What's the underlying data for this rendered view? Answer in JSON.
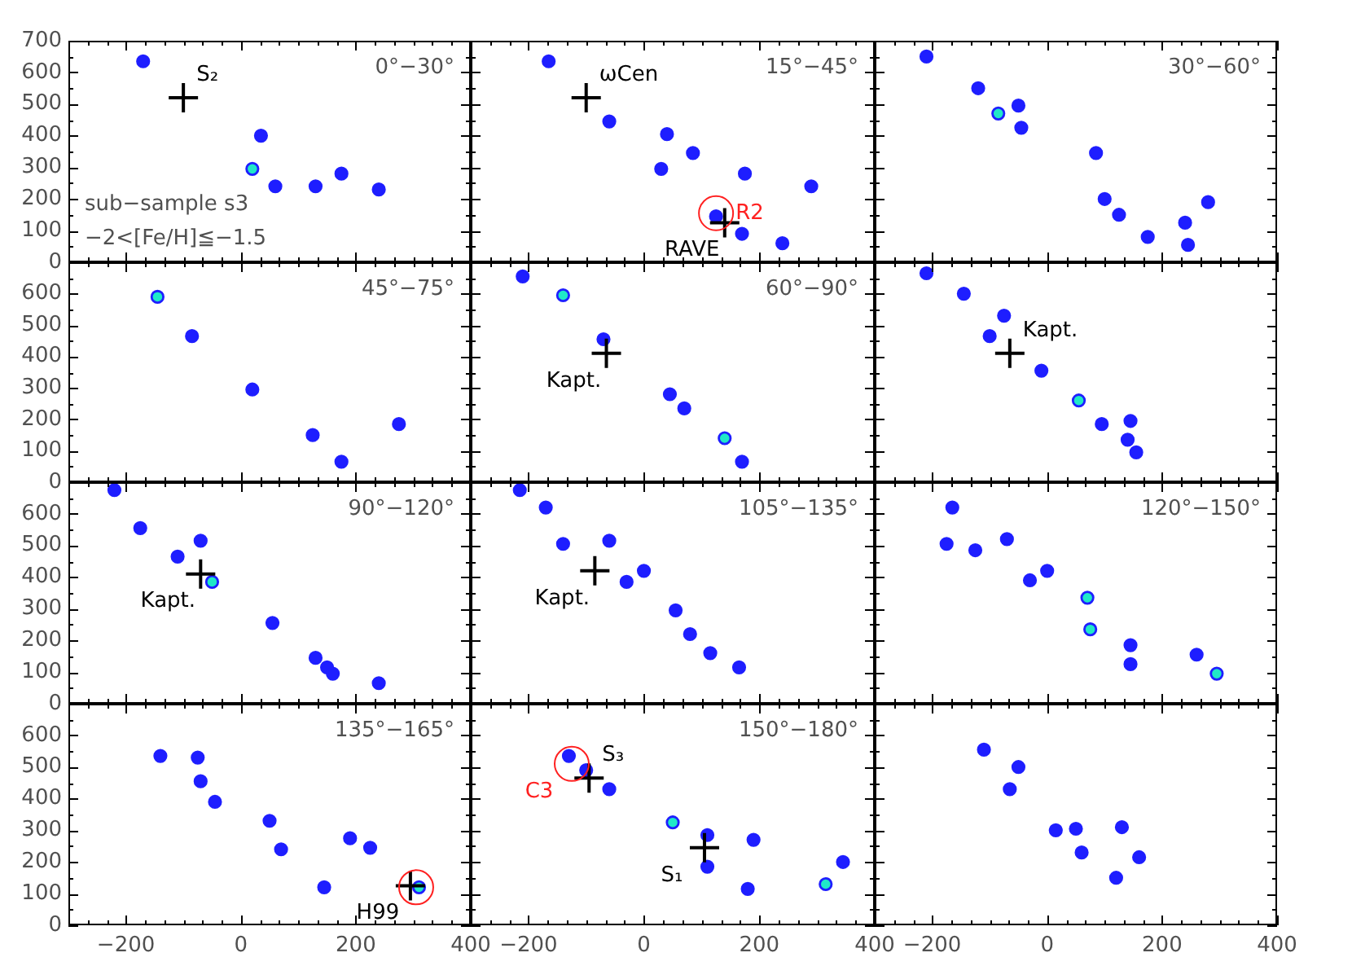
{
  "chart_data": [
    {
      "type": "scatter",
      "title": "0°−30°",
      "xlim": [
        -300,
        400
      ],
      "ylim": [
        0,
        700
      ],
      "xticks": [
        {
          "value": -266.7,
          "label": null
        },
        {
          "value": -233.3,
          "label": null
        },
        -200,
        {
          "value": -166.7,
          "label": null
        },
        {
          "value": -133.3,
          "label": null
        },
        {
          "value": -100,
          "label": null
        },
        {
          "value": -66.7,
          "label": null
        },
        {
          "value": -33.3,
          "label": null
        },
        0,
        {
          "value": 33.3,
          "label": null
        },
        {
          "value": 66.7,
          "label": null
        },
        {
          "value": 100,
          "label": null
        },
        {
          "value": 133.3,
          "label": null
        },
        {
          "value": 166.7,
          "label": null
        },
        200,
        {
          "value": 233.3,
          "label": null
        },
        {
          "value": 266.7,
          "label": null
        },
        {
          "value": 300,
          "label": null
        },
        {
          "value": 333.3,
          "label": null
        },
        {
          "value": 366.7,
          "label": null
        },
        400
      ],
      "yticks": [
        0,
        {
          "value": 50,
          "label": null
        },
        100,
        {
          "value": 150,
          "label": null
        },
        200,
        {
          "value": 250,
          "label": null
        },
        300,
        {
          "value": 350,
          "label": null
        },
        400,
        {
          "value": 450,
          "label": null
        },
        500,
        {
          "value": 550,
          "label": null
        },
        600,
        {
          "value": 650,
          "label": null
        },
        700
      ],
      "tick_labels": "y",
      "marker": "circle",
      "series": [
        {
          "color": "#1e1eff",
          "colors": [
            "#1e1eff",
            "#1e1eff",
            "#20e8c8",
            "#1e1eff",
            "#1e1eff",
            "#1e1eff",
            "#1e1eff"
          ],
          "x": [
            -170,
            35,
            20,
            60,
            130,
            175,
            240
          ],
          "values": [
            635,
            400,
            295,
            240,
            240,
            280,
            230
          ]
        },
        {
          "name": "S₂",
          "marker": "cross",
          "color": "#000000",
          "x": [
            -100
          ],
          "values": [
            520
          ]
        }
      ],
      "annotations": [
        "sub−sample s3",
        "−2<[Fe/H]≦−1.5"
      ]
    },
    {
      "type": "scatter",
      "title": "15°−45°",
      "xlim": [
        -300,
        400
      ],
      "ylim": [
        0,
        700
      ],
      "xticks": [
        {
          "value": -266.7,
          "label": null
        },
        {
          "value": -233.3,
          "label": null
        },
        -200,
        {
          "value": -166.7,
          "label": null
        },
        {
          "value": -133.3,
          "label": null
        },
        {
          "value": -100,
          "label": null
        },
        {
          "value": -66.7,
          "label": null
        },
        {
          "value": -33.3,
          "label": null
        },
        0,
        {
          "value": 33.3,
          "label": null
        },
        {
          "value": 66.7,
          "label": null
        },
        {
          "value": 100,
          "label": null
        },
        {
          "value": 133.3,
          "label": null
        },
        {
          "value": 166.7,
          "label": null
        },
        200,
        {
          "value": 233.3,
          "label": null
        },
        {
          "value": 266.7,
          "label": null
        },
        {
          "value": 300,
          "label": null
        },
        {
          "value": 333.3,
          "label": null
        },
        {
          "value": 366.7,
          "label": null
        },
        400
      ],
      "yticks": [
        0,
        {
          "value": 50,
          "label": null
        },
        100,
        {
          "value": 150,
          "label": null
        },
        200,
        {
          "value": 250,
          "label": null
        },
        300,
        {
          "value": 350,
          "label": null
        },
        400,
        {
          "value": 450,
          "label": null
        },
        500,
        {
          "value": 550,
          "label": null
        },
        600,
        {
          "value": 650,
          "label": null
        },
        700
      ],
      "tick_labels": false,
      "marker": "circle",
      "series": [
        {
          "color": "#1e1eff",
          "colors": [
            "#1e1eff",
            "#1e1eff",
            "#1e1eff",
            "#1e1eff",
            "#1e1eff",
            "#1e1eff",
            "#1e1eff",
            "#1e1eff",
            "#1e1eff",
            "#1e1eff"
          ],
          "x": [
            -165,
            -60,
            40,
            85,
            30,
            175,
            290,
            125,
            170,
            240
          ],
          "values": [
            635,
            445,
            405,
            345,
            295,
            280,
            240,
            145,
            90,
            60
          ]
        },
        {
          "name": "ωCen",
          "marker": "cross",
          "color": "#000000",
          "x": [
            -100
          ],
          "values": [
            520
          ]
        },
        {
          "name": "RAVE",
          "marker": "cross",
          "color": "#000000",
          "x": [
            140
          ],
          "values": [
            125
          ]
        },
        {
          "name": "R2",
          "color": "#ff2020",
          "x": [
            125
          ],
          "values": [
            155
          ]
        }
      ]
    },
    {
      "type": "scatter",
      "title": "30°−60°",
      "xlim": [
        -300,
        400
      ],
      "ylim": [
        0,
        700
      ],
      "xticks": [
        {
          "value": -266.7,
          "label": null
        },
        {
          "value": -233.3,
          "label": null
        },
        -200,
        {
          "value": -166.7,
          "label": null
        },
        {
          "value": -133.3,
          "label": null
        },
        {
          "value": -100,
          "label": null
        },
        {
          "value": -66.7,
          "label": null
        },
        {
          "value": -33.3,
          "label": null
        },
        0,
        {
          "value": 33.3,
          "label": null
        },
        {
          "value": 66.7,
          "label": null
        },
        {
          "value": 100,
          "label": null
        },
        {
          "value": 133.3,
          "label": null
        },
        {
          "value": 166.7,
          "label": null
        },
        200,
        {
          "value": 233.3,
          "label": null
        },
        {
          "value": 266.7,
          "label": null
        },
        {
          "value": 300,
          "label": null
        },
        {
          "value": 333.3,
          "label": null
        },
        {
          "value": 366.7,
          "label": null
        },
        400
      ],
      "yticks": [
        0,
        {
          "value": 50,
          "label": null
        },
        100,
        {
          "value": 150,
          "label": null
        },
        200,
        {
          "value": 250,
          "label": null
        },
        300,
        {
          "value": 350,
          "label": null
        },
        400,
        {
          "value": 450,
          "label": null
        },
        500,
        {
          "value": 550,
          "label": null
        },
        600,
        {
          "value": 650,
          "label": null
        },
        700
      ],
      "tick_labels": false,
      "marker": "circle",
      "series": [
        {
          "color": "#1e1eff",
          "colors": [
            "#1e1eff",
            "#1e1eff",
            "#1e1eff",
            "#20e8c8",
            "#1e1eff",
            "#1e1eff",
            "#1e1eff",
            "#1e1eff",
            "#1e1eff",
            "#1e1eff",
            "#1e1eff",
            "#1e1eff"
          ],
          "x": [
            -210,
            -120,
            -50,
            -85,
            -45,
            85,
            100,
            125,
            175,
            240,
            245,
            280
          ],
          "values": [
            650,
            550,
            495,
            470,
            425,
            345,
            200,
            150,
            80,
            125,
            55,
            190
          ]
        }
      ]
    },
    {
      "type": "scatter",
      "title": "45°−75°",
      "xlim": [
        -300,
        400
      ],
      "ylim": [
        0,
        700
      ],
      "xticks": [
        {
          "value": -266.7,
          "label": null
        },
        {
          "value": -233.3,
          "label": null
        },
        -200,
        {
          "value": -166.7,
          "label": null
        },
        {
          "value": -133.3,
          "label": null
        },
        {
          "value": -100,
          "label": null
        },
        {
          "value": -66.7,
          "label": null
        },
        {
          "value": -33.3,
          "label": null
        },
        0,
        {
          "value": 33.3,
          "label": null
        },
        {
          "value": 66.7,
          "label": null
        },
        {
          "value": 100,
          "label": null
        },
        {
          "value": 133.3,
          "label": null
        },
        {
          "value": 166.7,
          "label": null
        },
        200,
        {
          "value": 233.3,
          "label": null
        },
        {
          "value": 266.7,
          "label": null
        },
        {
          "value": 300,
          "label": null
        },
        {
          "value": 333.3,
          "label": null
        },
        {
          "value": 366.7,
          "label": null
        },
        400
      ],
      "yticks": [
        0,
        {
          "value": 50,
          "label": null
        },
        100,
        {
          "value": 150,
          "label": null
        },
        200,
        {
          "value": 250,
          "label": null
        },
        300,
        {
          "value": 350,
          "label": null
        },
        400,
        {
          "value": 450,
          "label": null
        },
        500,
        {
          "value": 550,
          "label": null
        },
        600,
        {
          "value": 650,
          "label": null
        },
        {
          "value": 700,
          "label": null
        }
      ],
      "tick_labels": "y",
      "marker": "circle",
      "series": [
        {
          "color": "#1e1eff",
          "colors": [
            "#20e8c8",
            "#1e1eff",
            "#1e1eff",
            "#1e1eff",
            "#1e1eff",
            "#1e1eff"
          ],
          "x": [
            -145,
            -85,
            20,
            125,
            175,
            275
          ],
          "values": [
            590,
            465,
            295,
            150,
            65,
            185
          ]
        }
      ]
    },
    {
      "type": "scatter",
      "title": "60°−90°",
      "xlim": [
        -300,
        400
      ],
      "ylim": [
        0,
        700
      ],
      "xticks": [
        {
          "value": -266.7,
          "label": null
        },
        {
          "value": -233.3,
          "label": null
        },
        -200,
        {
          "value": -166.7,
          "label": null
        },
        {
          "value": -133.3,
          "label": null
        },
        {
          "value": -100,
          "label": null
        },
        {
          "value": -66.7,
          "label": null
        },
        {
          "value": -33.3,
          "label": null
        },
        0,
        {
          "value": 33.3,
          "label": null
        },
        {
          "value": 66.7,
          "label": null
        },
        {
          "value": 100,
          "label": null
        },
        {
          "value": 133.3,
          "label": null
        },
        {
          "value": 166.7,
          "label": null
        },
        200,
        {
          "value": 233.3,
          "label": null
        },
        {
          "value": 266.7,
          "label": null
        },
        {
          "value": 300,
          "label": null
        },
        {
          "value": 333.3,
          "label": null
        },
        {
          "value": 366.7,
          "label": null
        },
        400
      ],
      "yticks": [
        0,
        {
          "value": 50,
          "label": null
        },
        100,
        {
          "value": 150,
          "label": null
        },
        200,
        {
          "value": 250,
          "label": null
        },
        300,
        {
          "value": 350,
          "label": null
        },
        400,
        {
          "value": 450,
          "label": null
        },
        500,
        {
          "value": 550,
          "label": null
        },
        600,
        {
          "value": 650,
          "label": null
        },
        {
          "value": 700,
          "label": null
        }
      ],
      "tick_labels": false,
      "marker": "circle",
      "series": [
        {
          "color": "#1e1eff",
          "colors": [
            "#1e1eff",
            "#20e8c8",
            "#1e1eff",
            "#1e1eff",
            "#1e1eff",
            "#20e8c8",
            "#1e1eff"
          ],
          "x": [
            -210,
            -140,
            -70,
            45,
            70,
            140,
            170
          ],
          "values": [
            655,
            595,
            455,
            280,
            235,
            140,
            65
          ]
        },
        {
          "name": "Kapt.",
          "marker": "cross",
          "color": "#000000",
          "x": [
            -65
          ],
          "values": [
            410
          ]
        }
      ]
    },
    {
      "type": "scatter",
      "xlim": [
        -300,
        400
      ],
      "ylim": [
        0,
        700
      ],
      "xticks": [
        {
          "value": -266.7,
          "label": null
        },
        {
          "value": -233.3,
          "label": null
        },
        -200,
        {
          "value": -166.7,
          "label": null
        },
        {
          "value": -133.3,
          "label": null
        },
        {
          "value": -100,
          "label": null
        },
        {
          "value": -66.7,
          "label": null
        },
        {
          "value": -33.3,
          "label": null
        },
        0,
        {
          "value": 33.3,
          "label": null
        },
        {
          "value": 66.7,
          "label": null
        },
        {
          "value": 100,
          "label": null
        },
        {
          "value": 133.3,
          "label": null
        },
        {
          "value": 166.7,
          "label": null
        },
        200,
        {
          "value": 233.3,
          "label": null
        },
        {
          "value": 266.7,
          "label": null
        },
        {
          "value": 300,
          "label": null
        },
        {
          "value": 333.3,
          "label": null
        },
        {
          "value": 366.7,
          "label": null
        },
        400
      ],
      "yticks": [
        0,
        {
          "value": 50,
          "label": null
        },
        100,
        {
          "value": 150,
          "label": null
        },
        200,
        {
          "value": 250,
          "label": null
        },
        300,
        {
          "value": 350,
          "label": null
        },
        400,
        {
          "value": 450,
          "label": null
        },
        500,
        {
          "value": 550,
          "label": null
        },
        600,
        {
          "value": 650,
          "label": null
        },
        {
          "value": 700,
          "label": null
        }
      ],
      "tick_labels": false,
      "marker": "circle",
      "series": [
        {
          "color": "#1e1eff",
          "colors": [
            "#1e1eff",
            "#1e1eff",
            "#1e1eff",
            "#1e1eff",
            "#1e1eff",
            "#20e8c8",
            "#1e1eff",
            "#1e1eff",
            "#1e1eff",
            "#1e1eff"
          ],
          "x": [
            -210,
            -145,
            -75,
            -100,
            -10,
            55,
            95,
            145,
            140,
            155
          ],
          "values": [
            665,
            600,
            530,
            465,
            355,
            260,
            185,
            195,
            135,
            95
          ]
        },
        {
          "name": "Kapt.",
          "marker": "cross",
          "color": "#000000",
          "x": [
            -65
          ],
          "values": [
            410
          ]
        }
      ]
    },
    {
      "type": "scatter",
      "title": "90°−120°",
      "xlim": [
        -300,
        400
      ],
      "ylim": [
        0,
        700
      ],
      "xticks": [
        {
          "value": -266.7,
          "label": null
        },
        {
          "value": -233.3,
          "label": null
        },
        -200,
        {
          "value": -166.7,
          "label": null
        },
        {
          "value": -133.3,
          "label": null
        },
        {
          "value": -100,
          "label": null
        },
        {
          "value": -66.7,
          "label": null
        },
        {
          "value": -33.3,
          "label": null
        },
        0,
        {
          "value": 33.3,
          "label": null
        },
        {
          "value": 66.7,
          "label": null
        },
        {
          "value": 100,
          "label": null
        },
        {
          "value": 133.3,
          "label": null
        },
        {
          "value": 166.7,
          "label": null
        },
        200,
        {
          "value": 233.3,
          "label": null
        },
        {
          "value": 266.7,
          "label": null
        },
        {
          "value": 300,
          "label": null
        },
        {
          "value": 333.3,
          "label": null
        },
        {
          "value": 366.7,
          "label": null
        },
        400
      ],
      "yticks": [
        0,
        {
          "value": 50,
          "label": null
        },
        100,
        {
          "value": 150,
          "label": null
        },
        200,
        {
          "value": 250,
          "label": null
        },
        300,
        {
          "value": 350,
          "label": null
        },
        400,
        {
          "value": 450,
          "label": null
        },
        500,
        {
          "value": 550,
          "label": null
        },
        600,
        {
          "value": 650,
          "label": null
        },
        {
          "value": 700,
          "label": null
        }
      ],
      "tick_labels": "y",
      "marker": "circle",
      "series": [
        {
          "color": "#1e1eff",
          "colors": [
            "#1e1eff",
            "#1e1eff",
            "#1e1eff",
            "#1e1eff",
            "#20e8c8",
            "#1e1eff",
            "#1e1eff",
            "#1e1eff",
            "#1e1eff",
            "#1e1eff"
          ],
          "x": [
            -220,
            -175,
            -70,
            -110,
            -50,
            55,
            130,
            150,
            160,
            240
          ],
          "values": [
            675,
            555,
            515,
            465,
            385,
            255,
            145,
            115,
            95,
            65
          ]
        },
        {
          "name": "Kapt.",
          "marker": "cross",
          "color": "#000000",
          "x": [
            -70
          ],
          "values": [
            410
          ]
        }
      ]
    },
    {
      "type": "scatter",
      "title": "105°−135°",
      "xlim": [
        -300,
        400
      ],
      "ylim": [
        0,
        700
      ],
      "xticks": [
        {
          "value": -266.7,
          "label": null
        },
        {
          "value": -233.3,
          "label": null
        },
        -200,
        {
          "value": -166.7,
          "label": null
        },
        {
          "value": -133.3,
          "label": null
        },
        {
          "value": -100,
          "label": null
        },
        {
          "value": -66.7,
          "label": null
        },
        {
          "value": -33.3,
          "label": null
        },
        0,
        {
          "value": 33.3,
          "label": null
        },
        {
          "value": 66.7,
          "label": null
        },
        {
          "value": 100,
          "label": null
        },
        {
          "value": 133.3,
          "label": null
        },
        {
          "value": 166.7,
          "label": null
        },
        200,
        {
          "value": 233.3,
          "label": null
        },
        {
          "value": 266.7,
          "label": null
        },
        {
          "value": 300,
          "label": null
        },
        {
          "value": 333.3,
          "label": null
        },
        {
          "value": 366.7,
          "label": null
        },
        400
      ],
      "yticks": [
        0,
        {
          "value": 50,
          "label": null
        },
        100,
        {
          "value": 150,
          "label": null
        },
        200,
        {
          "value": 250,
          "label": null
        },
        300,
        {
          "value": 350,
          "label": null
        },
        400,
        {
          "value": 450,
          "label": null
        },
        500,
        {
          "value": 550,
          "label": null
        },
        600,
        {
          "value": 650,
          "label": null
        },
        {
          "value": 700,
          "label": null
        }
      ],
      "tick_labels": false,
      "marker": "circle",
      "series": [
        {
          "color": "#1e1eff",
          "colors": [
            "#1e1eff",
            "#1e1eff",
            "#1e1eff",
            "#1e1eff",
            "#1e1eff",
            "#1e1eff",
            "#1e1eff",
            "#1e1eff",
            "#1e1eff",
            "#1e1eff"
          ],
          "x": [
            -215,
            -170,
            -140,
            -60,
            -30,
            0,
            55,
            80,
            115,
            165
          ],
          "values": [
            675,
            620,
            505,
            515,
            385,
            420,
            295,
            220,
            160,
            115
          ]
        },
        {
          "name": "Kapt.",
          "marker": "cross",
          "color": "#000000",
          "x": [
            -85
          ],
          "values": [
            420
          ]
        }
      ]
    },
    {
      "type": "scatter",
      "title": "120°−150°",
      "xlim": [
        -300,
        400
      ],
      "ylim": [
        0,
        700
      ],
      "xticks": [
        {
          "value": -266.7,
          "label": null
        },
        {
          "value": -233.3,
          "label": null
        },
        -200,
        {
          "value": -166.7,
          "label": null
        },
        {
          "value": -133.3,
          "label": null
        },
        {
          "value": -100,
          "label": null
        },
        {
          "value": -66.7,
          "label": null
        },
        {
          "value": -33.3,
          "label": null
        },
        0,
        {
          "value": 33.3,
          "label": null
        },
        {
          "value": 66.7,
          "label": null
        },
        {
          "value": 100,
          "label": null
        },
        {
          "value": 133.3,
          "label": null
        },
        {
          "value": 166.7,
          "label": null
        },
        200,
        {
          "value": 233.3,
          "label": null
        },
        {
          "value": 266.7,
          "label": null
        },
        {
          "value": 300,
          "label": null
        },
        {
          "value": 333.3,
          "label": null
        },
        {
          "value": 366.7,
          "label": null
        },
        400
      ],
      "yticks": [
        0,
        {
          "value": 50,
          "label": null
        },
        100,
        {
          "value": 150,
          "label": null
        },
        200,
        {
          "value": 250,
          "label": null
        },
        300,
        {
          "value": 350,
          "label": null
        },
        400,
        {
          "value": 450,
          "label": null
        },
        500,
        {
          "value": 550,
          "label": null
        },
        600,
        {
          "value": 650,
          "label": null
        },
        {
          "value": 700,
          "label": null
        }
      ],
      "tick_labels": false,
      "marker": "circle",
      "series": [
        {
          "color": "#1e1eff",
          "colors": [
            "#1e1eff",
            "#1e1eff",
            "#1e1eff",
            "#1e1eff",
            "#1e1eff",
            "#1e1eff",
            "#20e8c8",
            "#20e8c8",
            "#1e1eff",
            "#1e1eff",
            "#1e1eff",
            "#20e8c8"
          ],
          "x": [
            -165,
            -175,
            -125,
            -70,
            -30,
            0,
            70,
            75,
            145,
            145,
            260,
            295
          ],
          "values": [
            620,
            505,
            485,
            520,
            390,
            420,
            335,
            235,
            185,
            125,
            155,
            95
          ]
        }
      ]
    },
    {
      "type": "scatter",
      "title": "135°−165°",
      "xlim": [
        -300,
        400
      ],
      "ylim": [
        0,
        700
      ],
      "xticks": [
        {
          "value": -266.7,
          "label": null
        },
        {
          "value": -233.3,
          "label": null
        },
        {
          "value": -200,
          "label": "−200"
        },
        {
          "value": -166.7,
          "label": null
        },
        {
          "value": -133.3,
          "label": null
        },
        {
          "value": -100,
          "label": null
        },
        {
          "value": -66.7,
          "label": null
        },
        {
          "value": -33.3,
          "label": null
        },
        0,
        {
          "value": 33.3,
          "label": null
        },
        {
          "value": 66.7,
          "label": null
        },
        {
          "value": 100,
          "label": null
        },
        {
          "value": 133.3,
          "label": null
        },
        {
          "value": 166.7,
          "label": null
        },
        200,
        {
          "value": 233.3,
          "label": null
        },
        {
          "value": 266.7,
          "label": null
        },
        {
          "value": 300,
          "label": null
        },
        {
          "value": 333.3,
          "label": null
        },
        {
          "value": 366.7,
          "label": null
        },
        400
      ],
      "yticks": [
        0,
        {
          "value": 50,
          "label": null
        },
        100,
        {
          "value": 150,
          "label": null
        },
        200,
        {
          "value": 250,
          "label": null
        },
        300,
        {
          "value": 350,
          "label": null
        },
        400,
        {
          "value": 450,
          "label": null
        },
        500,
        {
          "value": 550,
          "label": null
        },
        600,
        {
          "value": 650,
          "label": null
        },
        {
          "value": 700,
          "label": null
        }
      ],
      "marker": "circle",
      "series": [
        {
          "color": "#1e1eff",
          "colors": [
            "#1e1eff",
            "#1e1eff",
            "#1e1eff",
            "#1e1eff",
            "#1e1eff",
            "#1e1eff",
            "#1e1eff",
            "#1e1eff",
            "#1e1eff",
            "#20e8c8"
          ],
          "x": [
            -140,
            -75,
            -70,
            -45,
            50,
            70,
            190,
            225,
            145,
            310
          ],
          "values": [
            535,
            530,
            455,
            390,
            330,
            240,
            275,
            245,
            120,
            120
          ]
        },
        {
          "name": "H99",
          "marker": "cross",
          "color": "#000000",
          "x": [
            295
          ],
          "values": [
            125
          ]
        },
        {
          "color": "#ff2020",
          "x": [
            305
          ],
          "values": [
            120
          ]
        }
      ]
    },
    {
      "type": "scatter",
      "title": "150°−180°",
      "xlim": [
        -300,
        400
      ],
      "ylim": [
        0,
        700
      ],
      "xticks": [
        {
          "value": -266.7,
          "label": null
        },
        {
          "value": -233.3,
          "label": null
        },
        {
          "value": -200,
          "label": "−200"
        },
        {
          "value": -166.7,
          "label": null
        },
        {
          "value": -133.3,
          "label": null
        },
        {
          "value": -100,
          "label": null
        },
        {
          "value": -66.7,
          "label": null
        },
        {
          "value": -33.3,
          "label": null
        },
        0,
        {
          "value": 33.3,
          "label": null
        },
        {
          "value": 66.7,
          "label": null
        },
        {
          "value": 100,
          "label": null
        },
        {
          "value": 133.3,
          "label": null
        },
        {
          "value": 166.7,
          "label": null
        },
        200,
        {
          "value": 233.3,
          "label": null
        },
        {
          "value": 266.7,
          "label": null
        },
        {
          "value": 300,
          "label": null
        },
        {
          "value": 333.3,
          "label": null
        },
        {
          "value": 366.7,
          "label": null
        },
        400
      ],
      "yticks": [
        0,
        {
          "value": 50,
          "label": null
        },
        100,
        {
          "value": 150,
          "label": null
        },
        200,
        {
          "value": 250,
          "label": null
        },
        300,
        {
          "value": 350,
          "label": null
        },
        400,
        {
          "value": 450,
          "label": null
        },
        500,
        {
          "value": 550,
          "label": null
        },
        600,
        {
          "value": 650,
          "label": null
        },
        {
          "value": 700,
          "label": null
        }
      ],
      "tick_labels": "x",
      "marker": "circle",
      "series": [
        {
          "color": "#1e1eff",
          "colors": [
            "#1e1eff",
            "#1e1eff",
            "#1e1eff",
            "#20e8c8",
            "#1e1eff",
            "#1e1eff",
            "#1e1eff",
            "#1e1eff",
            "#1e1eff",
            "#20e8c8"
          ],
          "x": [
            -130,
            -100,
            -60,
            50,
            110,
            190,
            110,
            180,
            345,
            315
          ],
          "values": [
            535,
            490,
            430,
            325,
            285,
            270,
            185,
            115,
            200,
            130
          ]
        },
        {
          "name": "S₃",
          "marker": "cross",
          "color": "#000000",
          "x": [
            -95
          ],
          "values": [
            465
          ]
        },
        {
          "name": "S₁",
          "marker": "cross",
          "color": "#000000",
          "x": [
            105
          ],
          "values": [
            245
          ]
        },
        {
          "name": "C3",
          "color": "#ff2020",
          "x": [
            -125
          ],
          "values": [
            510
          ]
        }
      ]
    },
    {
      "type": "scatter",
      "xlim": [
        -300,
        400
      ],
      "ylim": [
        0,
        700
      ],
      "xticks": [
        {
          "value": -266.7,
          "label": null
        },
        {
          "value": -233.3,
          "label": null
        },
        {
          "value": -200,
          "label": "−200"
        },
        {
          "value": -166.7,
          "label": null
        },
        {
          "value": -133.3,
          "label": null
        },
        {
          "value": -100,
          "label": null
        },
        {
          "value": -66.7,
          "label": null
        },
        {
          "value": -33.3,
          "label": null
        },
        0,
        {
          "value": 33.3,
          "label": null
        },
        {
          "value": 66.7,
          "label": null
        },
        {
          "value": 100,
          "label": null
        },
        {
          "value": 133.3,
          "label": null
        },
        {
          "value": 166.7,
          "label": null
        },
        200,
        {
          "value": 233.3,
          "label": null
        },
        {
          "value": 266.7,
          "label": null
        },
        {
          "value": 300,
          "label": null
        },
        {
          "value": 333.3,
          "label": null
        },
        {
          "value": 366.7,
          "label": null
        },
        400
      ],
      "yticks": [
        0,
        {
          "value": 50,
          "label": null
        },
        100,
        {
          "value": 150,
          "label": null
        },
        200,
        {
          "value": 250,
          "label": null
        },
        300,
        {
          "value": 350,
          "label": null
        },
        400,
        {
          "value": 450,
          "label": null
        },
        500,
        {
          "value": 550,
          "label": null
        },
        600,
        {
          "value": 650,
          "label": null
        },
        {
          "value": 700,
          "label": null
        }
      ],
      "tick_labels": "x",
      "marker": "circle",
      "series": [
        {
          "color": "#1e1eff",
          "colors": [
            "#1e1eff",
            "#1e1eff",
            "#1e1eff",
            "#1e1eff",
            "#1e1eff",
            "#1e1eff",
            "#1e1eff",
            "#1e1eff",
            "#1e1eff"
          ],
          "x": [
            -110,
            -50,
            -65,
            15,
            50,
            60,
            130,
            160,
            120
          ],
          "values": [
            555,
            500,
            430,
            300,
            305,
            230,
            310,
            215,
            150
          ]
        }
      ]
    }
  ]
}
